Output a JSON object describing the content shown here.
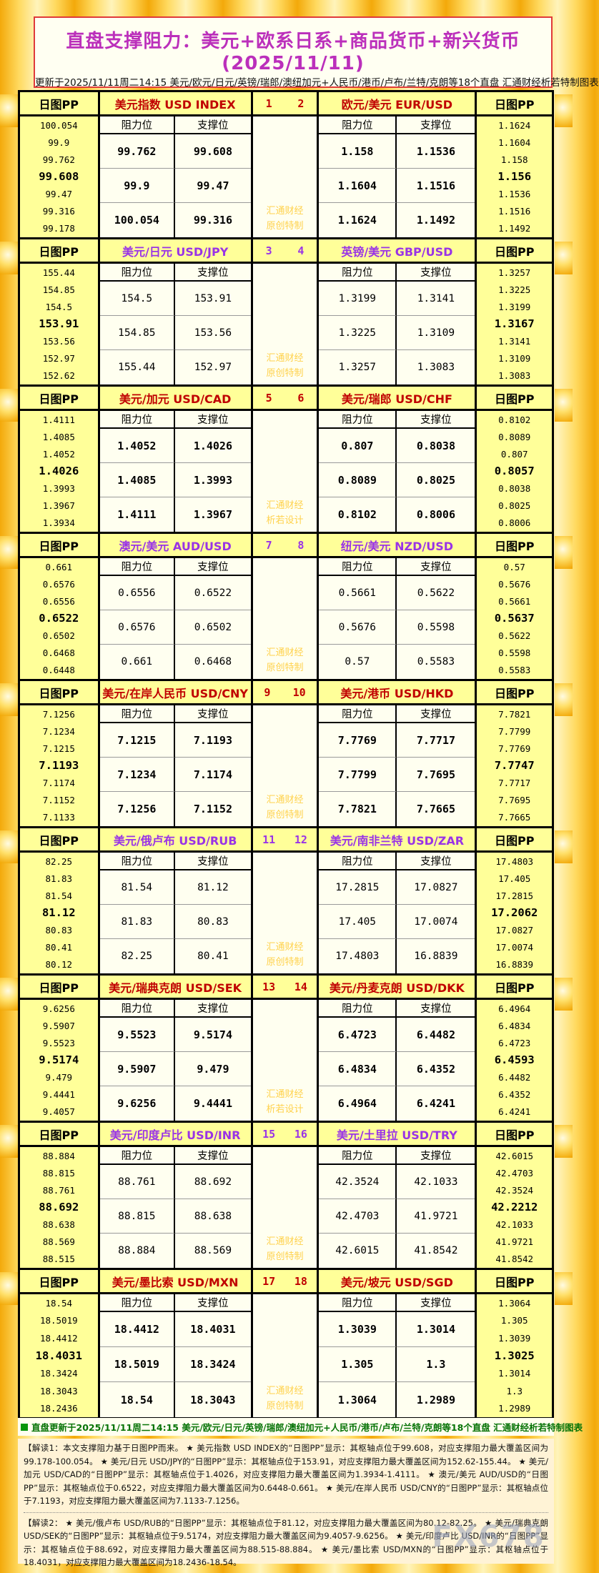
{
  "page": {
    "title": "直盘支撑阻力：美元+欧系日系+商品货币+新兴货币(2025/11/11)",
    "subtitle": "更新于2025/11/11周二14:15 美元/欧元/日元/英镑/瑞郎/澳纽加元+人民币/港币/卢布/兰特/克朗等18个直盘 汇通财经析若特制图表"
  },
  "labels": {
    "pp_header": "日图PP",
    "resistance": "阻力位",
    "support": "支撑位"
  },
  "colors": {
    "accent_red": "#c00000",
    "accent_purple": "#9933e6",
    "header_bg": "#ffff99",
    "cell_bg": "#fffff0",
    "watermark": "#ffd24d",
    "update_green": "#067306"
  },
  "blocks": [
    {
      "accent": "red",
      "num_left": "1",
      "num_right": "2",
      "values_bold": true,
      "watermark": [
        "汇通财经",
        "原创特制"
      ],
      "left": {
        "title": "美元指数 USD INDEX",
        "pp": [
          "100.054",
          "99.9",
          "99.762",
          "99.608",
          "99.47",
          "99.316",
          "99.178"
        ],
        "pivot_index": 3,
        "rows": [
          [
            "99.762",
            "99.608"
          ],
          [
            "99.9",
            "99.47"
          ],
          [
            "100.054",
            "99.316"
          ]
        ]
      },
      "right": {
        "title": "欧元/美元 EUR/USD",
        "pp": [
          "1.1624",
          "1.1604",
          "1.158",
          "1.156",
          "1.1536",
          "1.1516",
          "1.1492"
        ],
        "pivot_index": 3,
        "rows": [
          [
            "1.158",
            "1.1536"
          ],
          [
            "1.1604",
            "1.1516"
          ],
          [
            "1.1624",
            "1.1492"
          ]
        ]
      }
    },
    {
      "accent": "purple",
      "num_left": "3",
      "num_right": "4",
      "values_bold": false,
      "watermark": [
        "汇通财经",
        "原创特制"
      ],
      "left": {
        "title": "美元/日元 USD/JPY",
        "pp": [
          "155.44",
          "154.85",
          "154.5",
          "153.91",
          "153.56",
          "152.97",
          "152.62"
        ],
        "pivot_index": 3,
        "rows": [
          [
            "154.5",
            "153.91"
          ],
          [
            "154.85",
            "153.56"
          ],
          [
            "155.44",
            "152.97"
          ]
        ]
      },
      "right": {
        "title": "英镑/美元 GBP/USD",
        "pp": [
          "1.3257",
          "1.3225",
          "1.3199",
          "1.3167",
          "1.3141",
          "1.3109",
          "1.3083"
        ],
        "pivot_index": 3,
        "rows": [
          [
            "1.3199",
            "1.3141"
          ],
          [
            "1.3225",
            "1.3109"
          ],
          [
            "1.3257",
            "1.3083"
          ]
        ]
      }
    },
    {
      "accent": "red",
      "num_left": "5",
      "num_right": "6",
      "values_bold": true,
      "watermark": [
        "汇通财经",
        "析若设计"
      ],
      "left": {
        "title": "美元/加元 USD/CAD",
        "pp": [
          "1.4111",
          "1.4085",
          "1.4052",
          "1.4026",
          "1.3993",
          "1.3967",
          "1.3934"
        ],
        "pivot_index": 3,
        "rows": [
          [
            "1.4052",
            "1.4026"
          ],
          [
            "1.4085",
            "1.3993"
          ],
          [
            "1.4111",
            "1.3967"
          ]
        ]
      },
      "right": {
        "title": "美元/瑞郎 USD/CHF",
        "pp": [
          "0.8102",
          "0.8089",
          "0.807",
          "0.8057",
          "0.8038",
          "0.8025",
          "0.8006"
        ],
        "pivot_index": 3,
        "rows": [
          [
            "0.807",
            "0.8038"
          ],
          [
            "0.8089",
            "0.8025"
          ],
          [
            "0.8102",
            "0.8006"
          ]
        ]
      }
    },
    {
      "accent": "purple",
      "num_left": "7",
      "num_right": "8",
      "values_bold": false,
      "watermark": [
        "汇通财经",
        "原创特制"
      ],
      "left": {
        "title": "澳元/美元 AUD/USD",
        "pp": [
          "0.661",
          "0.6576",
          "0.6556",
          "0.6522",
          "0.6502",
          "0.6468",
          "0.6448"
        ],
        "pivot_index": 3,
        "rows": [
          [
            "0.6556",
            "0.6522"
          ],
          [
            "0.6576",
            "0.6502"
          ],
          [
            "0.661",
            "0.6468"
          ]
        ]
      },
      "right": {
        "title": "纽元/美元 NZD/USD",
        "pp": [
          "0.57",
          "0.5676",
          "0.5661",
          "0.5637",
          "0.5622",
          "0.5598",
          "0.5583"
        ],
        "pivot_index": 3,
        "rows": [
          [
            "0.5661",
            "0.5622"
          ],
          [
            "0.5676",
            "0.5598"
          ],
          [
            "0.57",
            "0.5583"
          ]
        ]
      }
    },
    {
      "accent": "red",
      "num_left": "9",
      "num_right": "10",
      "values_bold": true,
      "watermark": [
        "汇通财经",
        "原创特制"
      ],
      "left": {
        "title": "美元/在岸人民币 USD/CNY",
        "pp": [
          "7.1256",
          "7.1234",
          "7.1215",
          "7.1193",
          "7.1174",
          "7.1152",
          "7.1133"
        ],
        "pivot_index": 3,
        "rows": [
          [
            "7.1215",
            "7.1193"
          ],
          [
            "7.1234",
            "7.1174"
          ],
          [
            "7.1256",
            "7.1152"
          ]
        ]
      },
      "right": {
        "title": "美元/港币 USD/HKD",
        "pp": [
          "7.7821",
          "7.7799",
          "7.7769",
          "7.7747",
          "7.7717",
          "7.7695",
          "7.7665"
        ],
        "pivot_index": 3,
        "rows": [
          [
            "7.7769",
            "7.7717"
          ],
          [
            "7.7799",
            "7.7695"
          ],
          [
            "7.7821",
            "7.7665"
          ]
        ]
      }
    },
    {
      "accent": "purple",
      "num_left": "11",
      "num_right": "12",
      "values_bold": false,
      "watermark": [
        "汇通财经",
        "原创特制"
      ],
      "left": {
        "title": "美元/俄卢布 USD/RUB",
        "pp": [
          "82.25",
          "81.83",
          "81.54",
          "81.12",
          "80.83",
          "80.41",
          "80.12"
        ],
        "pivot_index": 3,
        "rows": [
          [
            "81.54",
            "81.12"
          ],
          [
            "81.83",
            "80.83"
          ],
          [
            "82.25",
            "80.41"
          ]
        ]
      },
      "right": {
        "title": "美元/南非兰特 USD/ZAR",
        "pp": [
          "17.4803",
          "17.405",
          "17.2815",
          "17.2062",
          "17.0827",
          "17.0074",
          "16.8839"
        ],
        "pivot_index": 3,
        "rows": [
          [
            "17.2815",
            "17.0827"
          ],
          [
            "17.405",
            "17.0074"
          ],
          [
            "17.4803",
            "16.8839"
          ]
        ]
      }
    },
    {
      "accent": "red",
      "num_left": "13",
      "num_right": "14",
      "values_bold": true,
      "watermark": [
        "汇通财经",
        "析若设计"
      ],
      "left": {
        "title": "美元/瑞典克朗 USD/SEK",
        "pp": [
          "9.6256",
          "9.5907",
          "9.5523",
          "9.5174",
          "9.479",
          "9.4441",
          "9.4057"
        ],
        "pivot_index": 3,
        "rows": [
          [
            "9.5523",
            "9.5174"
          ],
          [
            "9.5907",
            "9.479"
          ],
          [
            "9.6256",
            "9.4441"
          ]
        ]
      },
      "right": {
        "title": "美元/丹麦克朗 USD/DKK",
        "pp": [
          "6.4964",
          "6.4834",
          "6.4723",
          "6.4593",
          "6.4482",
          "6.4352",
          "6.4241"
        ],
        "pivot_index": 3,
        "rows": [
          [
            "6.4723",
            "6.4482"
          ],
          [
            "6.4834",
            "6.4352"
          ],
          [
            "6.4964",
            "6.4241"
          ]
        ]
      }
    },
    {
      "accent": "purple",
      "num_left": "15",
      "num_right": "16",
      "values_bold": false,
      "watermark": [
        "汇通财经",
        "原创特制"
      ],
      "left": {
        "title": "美元/印度卢比 USD/INR",
        "pp": [
          "88.884",
          "88.815",
          "88.761",
          "88.692",
          "88.638",
          "88.569",
          "88.515"
        ],
        "pivot_index": 3,
        "rows": [
          [
            "88.761",
            "88.692"
          ],
          [
            "88.815",
            "88.638"
          ],
          [
            "88.884",
            "88.569"
          ]
        ]
      },
      "right": {
        "title": "美元/土里拉 USD/TRY",
        "pp": [
          "42.6015",
          "42.4703",
          "42.3524",
          "42.2212",
          "42.1033",
          "41.9721",
          "41.8542"
        ],
        "pivot_index": 3,
        "rows": [
          [
            "42.3524",
            "42.1033"
          ],
          [
            "42.4703",
            "41.9721"
          ],
          [
            "42.6015",
            "41.8542"
          ]
        ]
      }
    },
    {
      "accent": "red",
      "num_left": "17",
      "num_right": "18",
      "values_bold": true,
      "watermark": [
        "汇通财经",
        "原创特制"
      ],
      "left": {
        "title": "美元/墨比索 USD/MXN",
        "pp": [
          "18.54",
          "18.5019",
          "18.4412",
          "18.4031",
          "18.3424",
          "18.3043",
          "18.2436"
        ],
        "pivot_index": 3,
        "rows": [
          [
            "18.4412",
            "18.4031"
          ],
          [
            "18.5019",
            "18.3424"
          ],
          [
            "18.54",
            "18.3043"
          ]
        ]
      },
      "right": {
        "title": "美元/坡元 USD/SGD",
        "pp": [
          "1.3064",
          "1.305",
          "1.3039",
          "1.3025",
          "1.3014",
          "1.3",
          "1.2989"
        ],
        "pivot_index": 3,
        "rows": [
          [
            "1.3039",
            "1.3014"
          ],
          [
            "1.305",
            "1.3"
          ],
          [
            "1.3064",
            "1.2989"
          ]
        ]
      }
    }
  ],
  "footer": {
    "update_line": "直盘更新于2025/11/11周二14:15 美元/欧元/日元/英镑/瑞郎/澳纽加元+人民币/港币/卢布/兰特/克朗等18个直盘 汇通财经析若特制图表",
    "note1": "【解读1：本文支撑阻力基于日图PP而来。 ★ 美元指数 USD INDEX的“日图PP”显示：其枢轴点位于99.608，对应支撑阻力最大覆盖区间为99.178-100.054。 ★ 美元/日元 USD/JPY的“日图PP”显示：其枢轴点位于153.91，对应支撑阻力最大覆盖区间为152.62-155.44。 ★ 美元/加元 USD/CAD的“日图PP”显示：其枢轴点位于1.4026，对应支撑阻力最大覆盖区间为1.3934-1.4111。 ★ 澳元/美元 AUD/USD的“日图PP”显示：其枢轴点位于0.6522，对应支撑阻力最大覆盖区间为0.6448-0.661。 ★ 美元/在岸人民币 USD/CNY的“日图PP”显示：其枢轴点位于7.1193，对应支撑阻力最大覆盖区间为7.1133-7.1256。",
    "note2": "【解读2： ★ 美元/俄卢布 USD/RUB的“日图PP”显示：其枢轴点位于81.12，对应支撑阻力最大覆盖区间为80.12-82.25。 ★ 美元/瑞典克朗 USD/SEK的“日图PP”显示：其枢轴点位于9.5174，对应支撑阻力最大覆盖区间为9.4057-9.6256。 ★ 美元/印度卢比 USD/INR的“日图PP”显示：其枢轴点位于88.692，对应支撑阻力最大覆盖区间为88.515-88.884。 ★ 美元/墨比索 USD/MXN的“日图PP”显示：其枢轴点位于18.4031，对应支撑阻力最大覆盖区间为18.2436-18.54。",
    "brand": "FX678"
  }
}
